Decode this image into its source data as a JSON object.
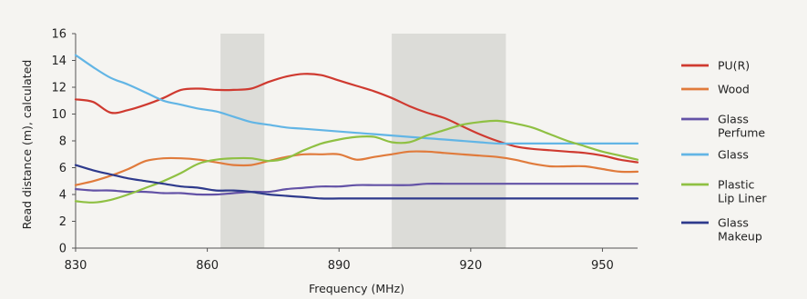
{
  "chart_data": {
    "type": "line",
    "xlabel": "Frequency (MHz)",
    "ylabel": "Read distance (m), calculated",
    "xlim": [
      830,
      958
    ],
    "ylim": [
      0,
      16
    ],
    "x_ticks": [
      "830",
      "860",
      "890",
      "920",
      "950"
    ],
    "y_ticks": [
      "0",
      "2",
      "4",
      "6",
      "8",
      "10",
      "12",
      "14",
      "16"
    ],
    "legend_placement": "right",
    "grid": false,
    "shaded_bands": [
      [
        863,
        873
      ],
      [
        902,
        928
      ]
    ],
    "shade_color": "#dcdcd8",
    "x": [
      830,
      834,
      838,
      842,
      846,
      850,
      854,
      858,
      862,
      866,
      870,
      874,
      878,
      882,
      886,
      890,
      894,
      898,
      902,
      906,
      910,
      914,
      918,
      922,
      926,
      930,
      934,
      938,
      942,
      946,
      950,
      954,
      958
    ],
    "series": [
      {
        "name": "PU(R)",
        "color": "#cf3a30",
        "legend_label": [
          "PU(R)"
        ],
        "values": [
          11.1,
          10.9,
          10.1,
          10.3,
          10.7,
          11.2,
          11.8,
          11.9,
          11.8,
          11.8,
          11.9,
          12.4,
          12.8,
          13.0,
          12.9,
          12.5,
          12.1,
          11.7,
          11.2,
          10.6,
          10.1,
          9.7,
          9.1,
          8.5,
          8.0,
          7.6,
          7.4,
          7.3,
          7.2,
          7.1,
          6.9,
          6.6,
          6.4
        ]
      },
      {
        "name": "Wood",
        "color": "#e07b3c",
        "legend_label": [
          "Wood"
        ],
        "values": [
          4.7,
          5.0,
          5.4,
          5.9,
          6.5,
          6.7,
          6.7,
          6.6,
          6.4,
          6.2,
          6.2,
          6.5,
          6.8,
          7.0,
          7.0,
          7.0,
          6.6,
          6.8,
          7.0,
          7.2,
          7.2,
          7.1,
          7.0,
          6.9,
          6.8,
          6.6,
          6.3,
          6.1,
          6.1,
          6.1,
          5.9,
          5.7,
          5.7
        ]
      },
      {
        "name": "Glass Perfume",
        "color": "#6352a6",
        "legend_label": [
          "Glass",
          "Perfume"
        ],
        "values": [
          4.4,
          4.3,
          4.3,
          4.2,
          4.2,
          4.1,
          4.1,
          4.0,
          4.0,
          4.1,
          4.2,
          4.2,
          4.4,
          4.5,
          4.6,
          4.6,
          4.7,
          4.7,
          4.7,
          4.7,
          4.8,
          4.8,
          4.8,
          4.8,
          4.8,
          4.8,
          4.8,
          4.8,
          4.8,
          4.8,
          4.8,
          4.8,
          4.8
        ]
      },
      {
        "name": "Glass",
        "color": "#62b5e5",
        "legend_label": [
          "Glass"
        ],
        "values": [
          14.4,
          13.5,
          12.7,
          12.2,
          11.6,
          11.0,
          10.7,
          10.4,
          10.2,
          9.8,
          9.4,
          9.2,
          9.0,
          8.9,
          8.8,
          8.7,
          8.6,
          8.5,
          8.4,
          8.3,
          8.2,
          8.1,
          8.0,
          7.9,
          7.8,
          7.8,
          7.8,
          7.8,
          7.8,
          7.8,
          7.8,
          7.8,
          7.8
        ]
      },
      {
        "name": "Plastic Lip Liner",
        "color": "#8fc043",
        "legend_label": [
          "Plastic",
          "Lip Liner"
        ],
        "values": [
          3.5,
          3.4,
          3.6,
          4.0,
          4.5,
          5.0,
          5.6,
          6.3,
          6.6,
          6.7,
          6.7,
          6.5,
          6.7,
          7.3,
          7.8,
          8.1,
          8.3,
          8.3,
          7.9,
          7.9,
          8.4,
          8.8,
          9.2,
          9.4,
          9.5,
          9.3,
          9.0,
          8.5,
          8.0,
          7.6,
          7.2,
          6.9,
          6.6
        ]
      },
      {
        "name": "Glass Makeup",
        "color": "#2e3a8c",
        "legend_label": [
          "Glass",
          "Makeup"
        ],
        "values": [
          6.2,
          5.8,
          5.5,
          5.2,
          5.0,
          4.8,
          4.6,
          4.5,
          4.3,
          4.3,
          4.2,
          4.0,
          3.9,
          3.8,
          3.7,
          3.7,
          3.7,
          3.7,
          3.7,
          3.7,
          3.7,
          3.7,
          3.7,
          3.7,
          3.7,
          3.7,
          3.7,
          3.7,
          3.7,
          3.7,
          3.7,
          3.7,
          3.7
        ]
      }
    ]
  }
}
